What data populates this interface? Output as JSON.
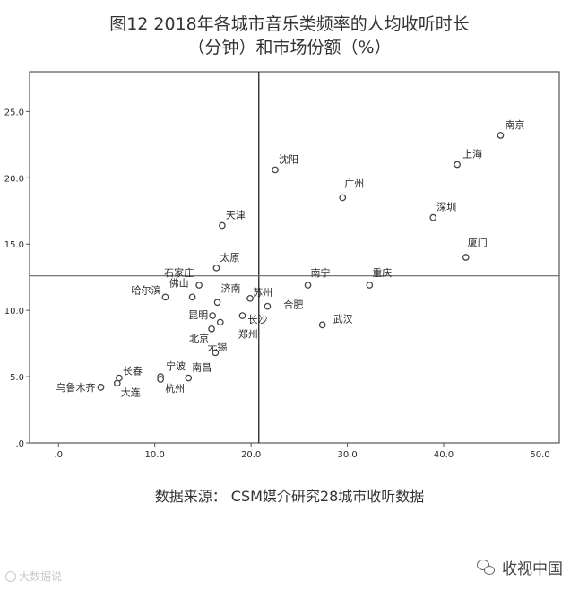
{
  "title_line1": "图12  2018年各城市音乐类频率的人均收听时长",
  "title_line2": "（分钟）和市场份额（%）",
  "source_note": "数据来源：  CSM媒介研究28城市收听数据",
  "watermark_left": "大数据说",
  "watermark_right": "收视中国",
  "colors": {
    "frame": "#555555",
    "points": "#444444",
    "text": "#2a2a2a"
  },
  "chart_data": {
    "type": "scatter",
    "title": "",
    "xlabel": "",
    "ylabel": "",
    "xlim": [
      -3,
      52
    ],
    "ylim": [
      0,
      28
    ],
    "xticks": [
      0,
      10,
      20,
      30,
      40,
      50
    ],
    "xtick_labels": [
      ".0",
      "10.0",
      "20.0",
      "30.0",
      "40.0",
      "50.0"
    ],
    "yticks": [
      0,
      5,
      10,
      15,
      20,
      25
    ],
    "ytick_labels": [
      ".0",
      "5.0",
      "10.0",
      "15.0",
      "20.0",
      "25.0"
    ],
    "reference_lines": {
      "x": 20.8,
      "y": 12.6
    },
    "grid": false,
    "points": [
      {
        "label": "南京",
        "x": 45.9,
        "y": 23.2
      },
      {
        "label": "上海",
        "x": 41.4,
        "y": 21.0
      },
      {
        "label": "沈阳",
        "x": 22.5,
        "y": 20.6
      },
      {
        "label": "广州",
        "x": 29.5,
        "y": 18.5
      },
      {
        "label": "深圳",
        "x": 38.9,
        "y": 17.0
      },
      {
        "label": "天津",
        "x": 17.0,
        "y": 16.4
      },
      {
        "label": "厦门",
        "x": 42.3,
        "y": 14.0
      },
      {
        "label": "太原",
        "x": 16.4,
        "y": 13.2
      },
      {
        "label": "石家庄",
        "x": 14.6,
        "y": 11.9
      },
      {
        "label": "南宁",
        "x": 25.9,
        "y": 11.9
      },
      {
        "label": "重庆",
        "x": 32.3,
        "y": 11.9
      },
      {
        "label": "哈尔滨",
        "x": 11.1,
        "y": 11.0
      },
      {
        "label": "佛山",
        "x": 13.9,
        "y": 11.0
      },
      {
        "label": "苏州",
        "x": 19.9,
        "y": 10.9
      },
      {
        "label": "济南",
        "x": 16.5,
        "y": 10.6
      },
      {
        "label": "合肥",
        "x": 21.7,
        "y": 10.3
      },
      {
        "label": "昆明",
        "x": 16.0,
        "y": 9.6
      },
      {
        "label": "长沙",
        "x": 19.1,
        "y": 9.6
      },
      {
        "label": "武汉",
        "x": 27.4,
        "y": 8.9
      },
      {
        "label": "郑州",
        "x": 16.8,
        "y": 9.1
      },
      {
        "label": "北京",
        "x": 15.9,
        "y": 8.6
      },
      {
        "label": "无锡",
        "x": 16.3,
        "y": 6.8
      },
      {
        "label": "长春",
        "x": 6.3,
        "y": 4.9
      },
      {
        "label": "大连",
        "x": 6.1,
        "y": 4.5
      },
      {
        "label": "宁波",
        "x": 10.6,
        "y": 5.0
      },
      {
        "label": "杭州",
        "x": 10.6,
        "y": 4.8
      },
      {
        "label": "南昌",
        "x": 13.5,
        "y": 4.9
      },
      {
        "label": "乌鲁木齐",
        "x": 4.4,
        "y": 4.2
      }
    ]
  }
}
